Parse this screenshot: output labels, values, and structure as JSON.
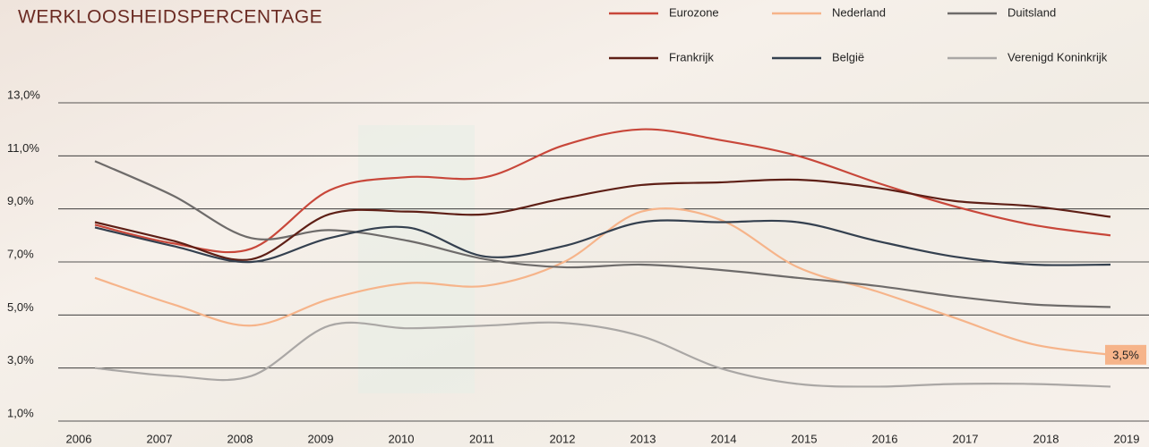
{
  "chart_data": {
    "type": "line",
    "title": "WERKLOOSHEIDSPERCENTAGE",
    "x": [
      2006.2,
      2007.17,
      2008.14,
      2009.11,
      2010.08,
      2011.05,
      2012.02,
      2012.98,
      2013.95,
      2014.92,
      2015.89,
      2016.86,
      2017.83,
      2018.8
    ],
    "xlim": [
      2006,
      2019
    ],
    "xticks": [
      2006,
      2007,
      2008,
      2009,
      2010,
      2011,
      2012,
      2013,
      2014,
      2015,
      2016,
      2017,
      2018,
      2019
    ],
    "ylim": [
      1,
      13
    ],
    "yticks": [
      {
        "value": 1,
        "label": "1,0%"
      },
      {
        "value": 3,
        "label": "3,0%"
      },
      {
        "value": 5,
        "label": "5,0%"
      },
      {
        "value": 7,
        "label": "7,0%"
      },
      {
        "value": 9,
        "label": "9,0%"
      },
      {
        "value": 11,
        "label": "11,0%"
      },
      {
        "value": 13,
        "label": "13,0%"
      }
    ],
    "grid": true,
    "series": [
      {
        "name": "Eurozone",
        "color": "#c8473a",
        "values": [
          8.4,
          7.7,
          7.5,
          9.7,
          10.2,
          10.2,
          11.4,
          12.0,
          11.6,
          11.0,
          10.0,
          9.1,
          8.4,
          8.0
        ]
      },
      {
        "name": "Nederland",
        "color": "#f6b48a",
        "values": [
          6.4,
          5.4,
          4.6,
          5.6,
          6.2,
          6.1,
          7.0,
          8.9,
          8.6,
          6.8,
          5.9,
          4.9,
          3.9,
          3.5
        ],
        "value_labels": [
          null,
          null,
          null,
          null,
          null,
          null,
          null,
          null,
          null,
          null,
          null,
          null,
          null,
          "3,5%"
        ]
      },
      {
        "name": "Duitsland",
        "color": "#6e6b6a",
        "values": [
          10.8,
          9.5,
          7.9,
          8.2,
          7.8,
          7.1,
          6.8,
          6.9,
          6.7,
          6.4,
          6.1,
          5.7,
          5.4,
          5.3
        ]
      },
      {
        "name": "Frankrijk",
        "color": "#5e1f16",
        "values": [
          8.5,
          7.8,
          7.1,
          8.8,
          8.9,
          8.8,
          9.4,
          9.9,
          10.0,
          10.1,
          9.8,
          9.3,
          9.1,
          8.7
        ]
      },
      {
        "name": "België",
        "color": "#34404f",
        "values": [
          8.3,
          7.6,
          7.0,
          7.9,
          8.3,
          7.2,
          7.6,
          8.5,
          8.5,
          8.5,
          7.8,
          7.2,
          6.9,
          6.9
        ]
      },
      {
        "name": "Verenigd Koninkrijk",
        "color": "#aaa7a5",
        "values": [
          3.0,
          2.7,
          2.7,
          4.6,
          4.5,
          4.6,
          4.7,
          4.2,
          3.0,
          2.4,
          2.3,
          2.4,
          2.4,
          2.3
        ]
      }
    ]
  }
}
